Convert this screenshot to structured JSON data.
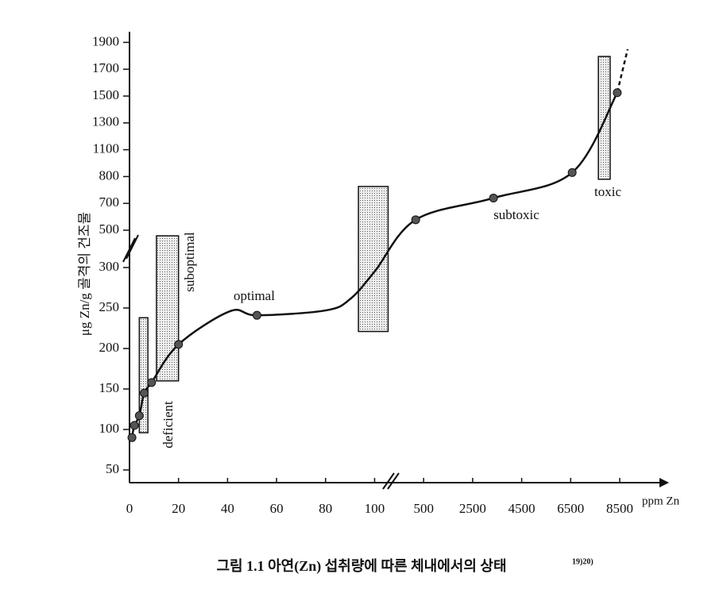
{
  "chart_data": {
    "type": "line",
    "y_label": "μg Zn/g 골격의 건조물",
    "x_label": "ppm Zn",
    "caption": "그림 1.1  아연(Zn) 섭취량에 따른 체내에서의 상태",
    "caption_ref": "19)20)",
    "xticks": [
      0,
      20,
      40,
      60,
      80,
      100,
      500,
      2500,
      4500,
      6500,
      8500
    ],
    "yticks": [
      50,
      100,
      150,
      200,
      250,
      300,
      500,
      700,
      800,
      1100,
      1300,
      1500,
      1700,
      1900
    ],
    "line_x": [
      1,
      2,
      4,
      6,
      9,
      20,
      41,
      52,
      80,
      90,
      100,
      435,
      3350,
      6560,
      8400
    ],
    "line_y": [
      90,
      105,
      117,
      145,
      158,
      205,
      246,
      241,
      247,
      261,
      295,
      578,
      720,
      845,
      1525
    ],
    "x": [
      1,
      2,
      4,
      6,
      9,
      20,
      52,
      435,
      3350,
      6560,
      8400
    ],
    "values": [
      90,
      105,
      117,
      145,
      158,
      205,
      241,
      578,
      720,
      845,
      1525
    ],
    "regions": [
      {
        "label": "deficient",
        "x": [
          4,
          7.5
        ],
        "y": [
          96,
          238
        ]
      },
      {
        "label": "suboptimal",
        "x": [
          11,
          20
        ],
        "y": [
          160,
          470
        ]
      },
      {
        "label": "optimal"
      },
      {
        "label": "subtoxic"
      },
      {
        "label": "toxic",
        "x": [
          7630,
          8110
        ],
        "y": [
          790,
          1795
        ]
      }
    ],
    "shaded": [
      {
        "x": [
          93.4,
          210
        ],
        "y": [
          221,
          763
        ]
      }
    ],
    "color": "#111"
  }
}
